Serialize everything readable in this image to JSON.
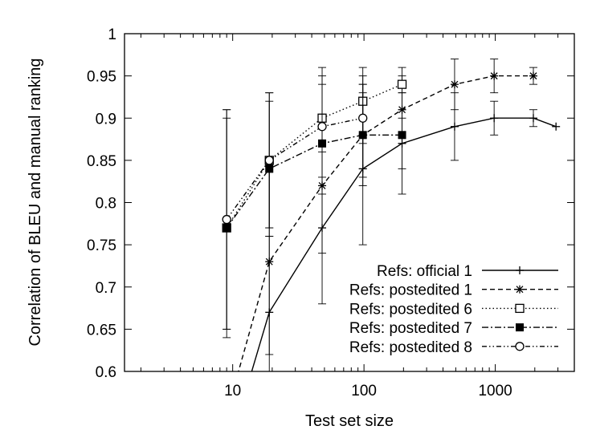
{
  "chart_data": {
    "type": "line",
    "title": "",
    "xlabel": "Test set size",
    "ylabel": "Correlation of BLEU and manual ranking",
    "x_scale": "log",
    "xlim": [
      1.5,
      4000
    ],
    "ylim": [
      0.6,
      1.0
    ],
    "x_ticks": [
      10,
      100,
      1000
    ],
    "x_tick_labels": [
      "10",
      "100",
      "1000"
    ],
    "y_ticks": [
      0.6,
      0.65,
      0.7,
      0.75,
      0.8,
      0.85,
      0.9,
      0.95,
      1.0
    ],
    "y_tick_labels": [
      "0.6",
      "0.65",
      "0.7",
      "0.75",
      "0.8",
      "0.85",
      "0.9",
      "0.95",
      "1"
    ],
    "grid": false,
    "legend_position": "bottom-right",
    "series": [
      {
        "name": "Refs: official 1",
        "marker": "plus",
        "dash": "solid",
        "x": [
          9,
          19,
          48,
          98,
          195,
          490,
          980,
          1950,
          2900
        ],
        "y": [
          0.5,
          0.67,
          0.77,
          0.84,
          0.87,
          0.89,
          0.9,
          0.9,
          0.89
        ],
        "err_low": [
          null,
          0.58,
          0.68,
          0.75,
          0.81,
          0.85,
          0.88,
          0.89,
          null
        ],
        "err_high": [
          null,
          0.76,
          0.86,
          0.93,
          0.93,
          0.93,
          0.92,
          0.91,
          null
        ]
      },
      {
        "name": "Refs: postedited 1",
        "marker": "star",
        "dash": "dashed",
        "x": [
          9,
          19,
          48,
          98,
          195,
          490,
          980,
          1950
        ],
        "y": [
          0.55,
          0.73,
          0.82,
          0.88,
          0.91,
          0.94,
          0.95,
          0.95
        ],
        "err_low": [
          null,
          0.62,
          0.74,
          0.82,
          0.87,
          0.91,
          0.93,
          0.94
        ],
        "err_high": [
          null,
          0.85,
          0.9,
          0.94,
          0.95,
          0.97,
          0.97,
          0.96
        ]
      },
      {
        "name": "Refs: postedited 6",
        "marker": "square-open",
        "dash": "dotted",
        "x": [
          9,
          19,
          48,
          98,
          195
        ],
        "y": [
          0.77,
          0.85,
          0.9,
          0.92,
          0.94
        ],
        "err_low": [
          0.65,
          0.77,
          0.82,
          0.87,
          0.9
        ],
        "err_high": [
          0.9,
          0.93,
          0.96,
          0.96,
          0.96
        ]
      },
      {
        "name": "Refs: postedited 7",
        "marker": "square-filled",
        "dash": "dashdot",
        "x": [
          9,
          19,
          48,
          98,
          195
        ],
        "y": [
          0.77,
          0.84,
          0.87,
          0.88,
          0.88
        ],
        "err_low": [
          0.64,
          0.76,
          0.81,
          0.83,
          0.84
        ],
        "err_high": [
          0.91,
          0.92,
          0.94,
          0.94,
          0.93
        ]
      },
      {
        "name": "Refs: postedited 8",
        "marker": "circle-open",
        "dash": "dashdotdot",
        "x": [
          9,
          19,
          48,
          98
        ],
        "y": [
          0.78,
          0.85,
          0.89,
          0.9
        ],
        "err_low": [
          0.65,
          0.77,
          0.83,
          0.84
        ],
        "err_high": [
          0.91,
          0.93,
          0.95,
          0.95
        ]
      }
    ]
  }
}
